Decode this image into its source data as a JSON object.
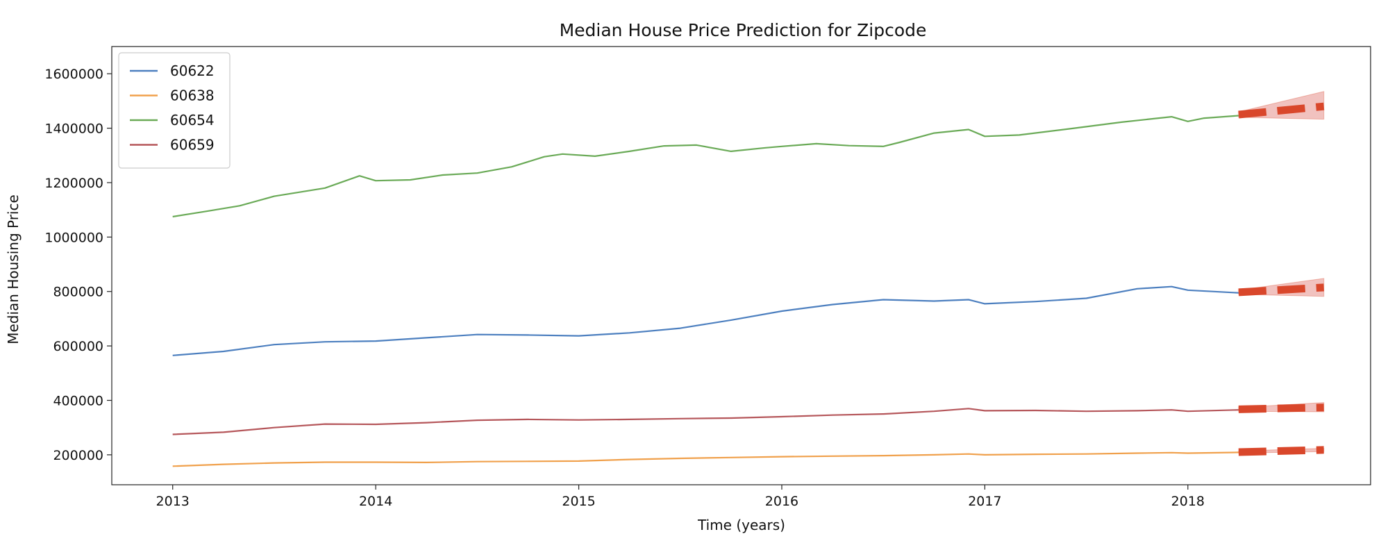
{
  "chart_data": {
    "type": "line",
    "title": "Median House Price Prediction for Zipcode",
    "xlabel": "Time (years)",
    "ylabel": "Median Housing Price",
    "xlim": [
      2012.7,
      2018.9
    ],
    "ylim": [
      90000,
      1700000
    ],
    "x_ticks": [
      2013,
      2014,
      2015,
      2016,
      2017,
      2018
    ],
    "y_ticks": [
      200000,
      400000,
      600000,
      800000,
      1000000,
      1200000,
      1400000,
      1600000
    ],
    "grid": false,
    "legend_position": "top-left",
    "forecast_color": "#d9472b",
    "band_color": "#e89a95",
    "series": [
      {
        "name": "60622",
        "color": "#4c7fbf",
        "points": [
          [
            2013.0,
            565000
          ],
          [
            2013.25,
            580000
          ],
          [
            2013.5,
            605000
          ],
          [
            2013.75,
            615000
          ],
          [
            2014.0,
            618000
          ],
          [
            2014.25,
            630000
          ],
          [
            2014.5,
            642000
          ],
          [
            2014.75,
            640000
          ],
          [
            2015.0,
            637000
          ],
          [
            2015.25,
            648000
          ],
          [
            2015.5,
            665000
          ],
          [
            2015.75,
            695000
          ],
          [
            2016.0,
            728000
          ],
          [
            2016.25,
            752000
          ],
          [
            2016.5,
            770000
          ],
          [
            2016.75,
            765000
          ],
          [
            2016.92,
            770000
          ],
          [
            2017.0,
            755000
          ],
          [
            2017.25,
            763000
          ],
          [
            2017.5,
            775000
          ],
          [
            2017.75,
            810000
          ],
          [
            2017.92,
            818000
          ],
          [
            2018.0,
            805000
          ],
          [
            2018.25,
            795000
          ]
        ],
        "forecast": [
          [
            2018.25,
            797000
          ],
          [
            2018.67,
            815000
          ]
        ],
        "band_lower": [
          [
            2018.25,
            790000
          ],
          [
            2018.67,
            782000
          ]
        ],
        "band_upper": [
          [
            2018.25,
            805000
          ],
          [
            2018.67,
            848000
          ]
        ]
      },
      {
        "name": "60638",
        "color": "#f0a04b",
        "points": [
          [
            2013.0,
            158000
          ],
          [
            2013.25,
            165000
          ],
          [
            2013.5,
            170000
          ],
          [
            2013.75,
            173000
          ],
          [
            2014.0,
            173000
          ],
          [
            2014.25,
            172000
          ],
          [
            2014.5,
            175000
          ],
          [
            2014.75,
            176000
          ],
          [
            2015.0,
            177000
          ],
          [
            2015.25,
            183000
          ],
          [
            2015.5,
            187000
          ],
          [
            2015.75,
            190000
          ],
          [
            2016.0,
            193000
          ],
          [
            2016.25,
            195000
          ],
          [
            2016.5,
            197000
          ],
          [
            2016.75,
            200000
          ],
          [
            2016.92,
            203000
          ],
          [
            2017.0,
            200000
          ],
          [
            2017.25,
            202000
          ],
          [
            2017.5,
            203000
          ],
          [
            2017.75,
            206000
          ],
          [
            2017.92,
            208000
          ],
          [
            2018.0,
            206000
          ],
          [
            2018.25,
            209000
          ]
        ],
        "forecast": [
          [
            2018.25,
            210000
          ],
          [
            2018.67,
            218000
          ]
        ],
        "band_lower": [
          [
            2018.25,
            206000
          ],
          [
            2018.67,
            212000
          ]
        ],
        "band_upper": [
          [
            2018.25,
            214000
          ],
          [
            2018.67,
            224000
          ]
        ]
      },
      {
        "name": "60654",
        "color": "#6aaa57",
        "points": [
          [
            2013.0,
            1075000
          ],
          [
            2013.17,
            1095000
          ],
          [
            2013.33,
            1115000
          ],
          [
            2013.5,
            1150000
          ],
          [
            2013.75,
            1180000
          ],
          [
            2013.92,
            1225000
          ],
          [
            2014.0,
            1207000
          ],
          [
            2014.17,
            1210000
          ],
          [
            2014.33,
            1228000
          ],
          [
            2014.5,
            1235000
          ],
          [
            2014.67,
            1258000
          ],
          [
            2014.83,
            1295000
          ],
          [
            2014.92,
            1305000
          ],
          [
            2015.08,
            1297000
          ],
          [
            2015.25,
            1315000
          ],
          [
            2015.42,
            1335000
          ],
          [
            2015.58,
            1338000
          ],
          [
            2015.75,
            1315000
          ],
          [
            2015.92,
            1328000
          ],
          [
            2016.0,
            1333000
          ],
          [
            2016.17,
            1343000
          ],
          [
            2016.33,
            1336000
          ],
          [
            2016.5,
            1333000
          ],
          [
            2016.58,
            1348000
          ],
          [
            2016.75,
            1382000
          ],
          [
            2016.92,
            1395000
          ],
          [
            2017.0,
            1370000
          ],
          [
            2017.17,
            1375000
          ],
          [
            2017.42,
            1398000
          ],
          [
            2017.67,
            1422000
          ],
          [
            2017.92,
            1442000
          ],
          [
            2018.0,
            1425000
          ],
          [
            2018.08,
            1437000
          ],
          [
            2018.25,
            1446000
          ]
        ],
        "forecast": [
          [
            2018.25,
            1450000
          ],
          [
            2018.67,
            1480000
          ]
        ],
        "band_lower": [
          [
            2018.25,
            1440000
          ],
          [
            2018.67,
            1433000
          ]
        ],
        "band_upper": [
          [
            2018.25,
            1460000
          ],
          [
            2018.67,
            1535000
          ]
        ]
      },
      {
        "name": "60659",
        "color": "#b5565a",
        "points": [
          [
            2013.0,
            275000
          ],
          [
            2013.25,
            283000
          ],
          [
            2013.5,
            300000
          ],
          [
            2013.75,
            313000
          ],
          [
            2014.0,
            312000
          ],
          [
            2014.25,
            318000
          ],
          [
            2014.5,
            327000
          ],
          [
            2014.75,
            330000
          ],
          [
            2015.0,
            328000
          ],
          [
            2015.25,
            330000
          ],
          [
            2015.5,
            333000
          ],
          [
            2015.75,
            335000
          ],
          [
            2016.0,
            340000
          ],
          [
            2016.25,
            346000
          ],
          [
            2016.5,
            350000
          ],
          [
            2016.75,
            360000
          ],
          [
            2016.92,
            370000
          ],
          [
            2017.0,
            362000
          ],
          [
            2017.25,
            363000
          ],
          [
            2017.5,
            360000
          ],
          [
            2017.75,
            362000
          ],
          [
            2017.92,
            365000
          ],
          [
            2018.0,
            360000
          ],
          [
            2018.25,
            365000
          ]
        ],
        "forecast": [
          [
            2018.25,
            367000
          ],
          [
            2018.67,
            374000
          ]
        ],
        "band_lower": [
          [
            2018.25,
            360000
          ],
          [
            2018.67,
            358000
          ]
        ],
        "band_upper": [
          [
            2018.25,
            374000
          ],
          [
            2018.67,
            392000
          ]
        ]
      }
    ]
  }
}
